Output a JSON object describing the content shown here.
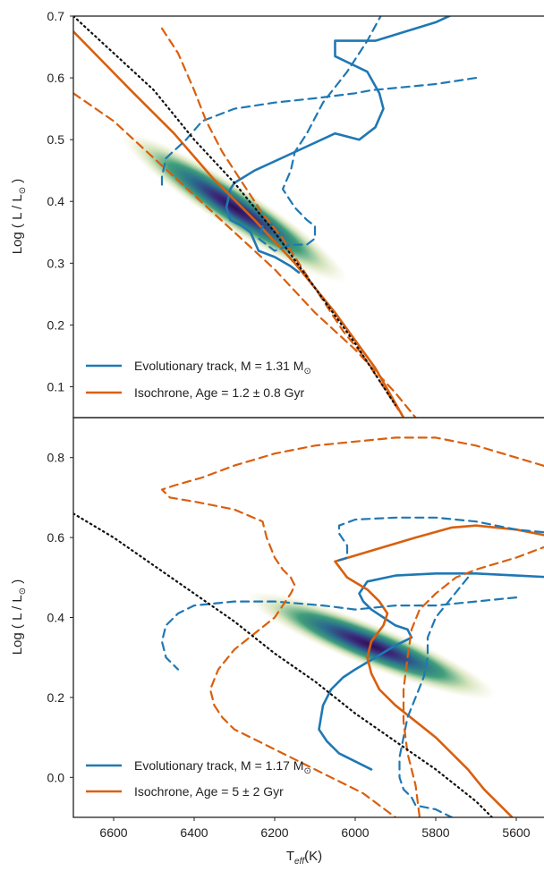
{
  "chart_data": [
    {
      "type": "line",
      "panel": "top",
      "xlim": [
        6700,
        5500
      ],
      "ylim": [
        0.05,
        0.7
      ],
      "x_ticks": [],
      "y_ticks": [
        0.1,
        0.2,
        0.3,
        0.4,
        0.5,
        0.6,
        0.7
      ],
      "y_tick_labels": [
        "0.1",
        "0.2",
        "0.3",
        "0.4",
        "0.5",
        "0.6",
        "0.7"
      ],
      "xlabel": "",
      "ylabel": "Log ( L / L",
      "ylabel_sub": "⊙",
      "ylabel_close": " )",
      "grid": false,
      "legend_position": "lower-left",
      "legend": [
        {
          "text": "Evolutionary track, M = 1.31 M",
          "sub": "⊙",
          "color": "#1f78b4"
        },
        {
          "text": "Isochrone, Age = 1.2 ± 0.8 Gyr",
          "sub": "",
          "color": "#d95f0e"
        }
      ],
      "density": {
        "center": [
          6300,
          0.39
        ],
        "colormap": "viridis-like (dark purple core, green-yellow halo)"
      },
      "series": [
        {
          "role": "track",
          "style": "solid",
          "color": "#1f78b4",
          "x": [
            5630,
            5700,
            5800,
            5950,
            6050,
            6050,
            5970,
            5940,
            5930,
            5950,
            5990,
            6050,
            6150,
            6250,
            6300,
            6310,
            6320,
            6310,
            6280,
            6260,
            6240,
            6200,
            6160,
            6140
          ],
          "y": [
            0.73,
            0.72,
            0.69,
            0.66,
            0.66,
            0.635,
            0.61,
            0.575,
            0.55,
            0.52,
            0.5,
            0.51,
            0.48,
            0.45,
            0.43,
            0.42,
            0.39,
            0.37,
            0.36,
            0.35,
            0.32,
            0.31,
            0.295,
            0.285
          ]
        },
        {
          "role": "isochrone",
          "style": "solid",
          "color": "#d95f0e",
          "x": [
            6700,
            6550,
            6450,
            6350,
            6250,
            6150,
            6050,
            5950,
            5880
          ],
          "y": [
            0.675,
            0.575,
            0.51,
            0.435,
            0.37,
            0.3,
            0.22,
            0.13,
            0.05
          ]
        },
        {
          "role": "track-error-upper",
          "style": "dashed",
          "color": "#1f78b4",
          "x": [
            5700,
            5800,
            5960,
            6000,
            6100,
            6200,
            6300,
            6380,
            6420,
            6470,
            6480,
            6480
          ],
          "y": [
            0.6,
            0.59,
            0.58,
            0.575,
            0.567,
            0.56,
            0.55,
            0.53,
            0.5,
            0.47,
            0.44,
            0.42
          ]
        },
        {
          "role": "track-error-lower",
          "style": "dashed",
          "color": "#1f78b4",
          "x": [
            5880,
            5920,
            5970,
            6020,
            6080,
            6120,
            6150,
            6160,
            6180,
            6150,
            6120,
            6100,
            6100,
            6120,
            6160,
            6200,
            6220,
            6240,
            6230
          ],
          "y": [
            0.73,
            0.72,
            0.66,
            0.61,
            0.56,
            0.51,
            0.48,
            0.45,
            0.42,
            0.39,
            0.37,
            0.36,
            0.34,
            0.33,
            0.33,
            0.32,
            0.33,
            0.34,
            0.36
          ]
        },
        {
          "role": "isochrone-error",
          "style": "dashed",
          "color": "#d95f0e",
          "x": [
            6700,
            6600,
            6500,
            6400,
            6300,
            6200,
            6100,
            6000,
            5900,
            5850
          ],
          "y": [
            0.575,
            0.53,
            0.47,
            0.41,
            0.35,
            0.29,
            0.22,
            0.16,
            0.09,
            0.05
          ]
        },
        {
          "role": "isochrone-error",
          "style": "dashed",
          "color": "#d95f0e",
          "x": [
            6480,
            6440,
            6400,
            6370,
            6330,
            6280,
            6230,
            6180,
            6130,
            6080,
            6030,
            5980,
            5930,
            5880
          ],
          "y": [
            0.68,
            0.64,
            0.58,
            0.53,
            0.48,
            0.43,
            0.38,
            0.34,
            0.29,
            0.24,
            0.19,
            0.15,
            0.1,
            0.05
          ]
        },
        {
          "role": "zams",
          "style": "dotted",
          "color": "#111111",
          "x": [
            6700,
            6600,
            6500,
            6400,
            6300,
            6200,
            6100,
            6000,
            5900
          ],
          "y": [
            0.7,
            0.64,
            0.58,
            0.5,
            0.43,
            0.35,
            0.26,
            0.17,
            0.07
          ]
        }
      ]
    },
    {
      "type": "line",
      "panel": "bottom",
      "xlim": [
        6700,
        5500
      ],
      "ylim": [
        -0.1,
        0.9
      ],
      "x_ticks": [
        6600,
        6400,
        6200,
        6000,
        5800,
        5600
      ],
      "x_tick_labels": [
        "6600",
        "6400",
        "6200",
        "6000",
        "5800",
        "5600"
      ],
      "y_ticks": [
        0.0,
        0.2,
        0.4,
        0.6,
        0.8
      ],
      "y_tick_labels": [
        "0.0",
        "0.2",
        "0.4",
        "0.6",
        "0.8"
      ],
      "xlabel": "T",
      "xlabel_sub": "eff",
      "xlabel_unit": "(K)",
      "ylabel": "Log ( L / L",
      "ylabel_sub": "⊙",
      "ylabel_close": " )",
      "grid": false,
      "legend_position": "lower-left",
      "legend": [
        {
          "text": "Evolutionary track, M = 1.17 M",
          "sub": "⊙",
          "color": "#1f78b4"
        },
        {
          "text": "Isochrone, Age = 5 ± 2 Gyr",
          "sub": "",
          "color": "#d95f0e"
        }
      ],
      "density": {
        "center": [
          5960,
          0.33
        ],
        "colormap": "viridis-like (dark purple core, green-yellow halo)"
      },
      "series": [
        {
          "role": "track",
          "style": "solid",
          "color": "#1f78b4",
          "x": [
            5500,
            5600,
            5700,
            5800,
            5900,
            5970,
            5990,
            5980,
            5960,
            5930,
            5900,
            5870,
            5860,
            5900,
            5950,
            6000,
            6030,
            6060,
            6080,
            6090,
            6070,
            6050,
            6040,
            6000,
            5960
          ],
          "y": [
            0.5,
            0.505,
            0.51,
            0.51,
            0.505,
            0.49,
            0.46,
            0.44,
            0.42,
            0.4,
            0.38,
            0.37,
            0.35,
            0.33,
            0.3,
            0.27,
            0.25,
            0.22,
            0.18,
            0.12,
            0.09,
            0.07,
            0.06,
            0.04,
            0.02
          ]
        },
        {
          "role": "isochrone",
          "style": "solid",
          "color": "#d95f0e",
          "x": [
            5500,
            5600,
            5700,
            5760,
            5850,
            5950,
            6050,
            6020,
            5970,
            5940,
            5920,
            5930,
            5960,
            5970,
            5960,
            5940,
            5900,
            5850,
            5800,
            5760,
            5720,
            5680,
            5640,
            5610
          ],
          "y": [
            0.6,
            0.62,
            0.63,
            0.625,
            0.6,
            0.57,
            0.54,
            0.5,
            0.47,
            0.44,
            0.41,
            0.38,
            0.34,
            0.3,
            0.26,
            0.22,
            0.18,
            0.14,
            0.1,
            0.06,
            0.02,
            -0.03,
            -0.07,
            -0.1
          ]
        },
        {
          "role": "track-error",
          "style": "dashed",
          "color": "#1f78b4",
          "x": [
            5500,
            5600,
            5700,
            5800,
            5900,
            6000,
            6040,
            6040,
            6020,
            6020,
            6050
          ],
          "y": [
            0.61,
            0.62,
            0.64,
            0.65,
            0.65,
            0.645,
            0.63,
            0.61,
            0.58,
            0.55,
            0.54
          ]
        },
        {
          "role": "track-error",
          "style": "dashed",
          "color": "#1f78b4",
          "x": [
            5600,
            5700,
            5800,
            5900,
            6000,
            6080,
            6200,
            6300,
            6400,
            6440,
            6470,
            6480,
            6470,
            6440
          ],
          "y": [
            0.45,
            0.44,
            0.43,
            0.43,
            0.42,
            0.43,
            0.44,
            0.44,
            0.43,
            0.41,
            0.38,
            0.34,
            0.3,
            0.27
          ]
        },
        {
          "role": "track-error",
          "style": "dashed",
          "color": "#1f78b4",
          "x": [
            5720,
            5760,
            5800,
            5820,
            5820,
            5830,
            5850,
            5870,
            5880,
            5890,
            5890,
            5880,
            5860,
            5850,
            5800,
            5760
          ],
          "y": [
            0.5,
            0.45,
            0.4,
            0.35,
            0.3,
            0.25,
            0.2,
            0.15,
            0.1,
            0.05,
            0.0,
            -0.03,
            -0.05,
            -0.07,
            -0.08,
            -0.1
          ]
        },
        {
          "role": "isochrone-error",
          "style": "dashed",
          "color": "#d95f0e",
          "x": [
            5500,
            5600,
            5700,
            5800,
            5900,
            6000,
            6100,
            6200,
            6300,
            6380,
            6450,
            6480,
            6460,
            6400,
            6300,
            6230,
            6220,
            6200,
            6180,
            6160,
            6150,
            6160,
            6180,
            6200,
            6250,
            6300,
            6340,
            6360,
            6350
          ],
          "y": [
            0.77,
            0.8,
            0.83,
            0.85,
            0.85,
            0.84,
            0.83,
            0.81,
            0.78,
            0.75,
            0.73,
            0.72,
            0.7,
            0.69,
            0.67,
            0.64,
            0.6,
            0.55,
            0.52,
            0.5,
            0.48,
            0.46,
            0.43,
            0.4,
            0.36,
            0.32,
            0.27,
            0.22,
            0.18
          ]
        },
        {
          "role": "isochrone-error",
          "style": "dashed",
          "color": "#d95f0e",
          "x": [
            5520,
            5600,
            5700,
            5750,
            5800,
            5840,
            5860,
            5870,
            5880,
            5880,
            5870,
            5850,
            5840
          ],
          "y": [
            0.58,
            0.55,
            0.52,
            0.5,
            0.46,
            0.42,
            0.37,
            0.3,
            0.22,
            0.14,
            0.06,
            -0.02,
            -0.1
          ]
        },
        {
          "role": "isochrone-error",
          "style": "dashed",
          "color": "#d95f0e",
          "x": [
            6350,
            6330,
            6300,
            6260,
            6220,
            6180,
            6140,
            6100,
            6060,
            6020,
            5980,
            5940,
            5900
          ],
          "y": [
            0.18,
            0.15,
            0.12,
            0.1,
            0.08,
            0.06,
            0.04,
            0.02,
            0.0,
            -0.02,
            -0.04,
            -0.07,
            -0.1
          ]
        },
        {
          "role": "zams",
          "style": "dotted",
          "color": "#111111",
          "x": [
            6700,
            6600,
            6500,
            6400,
            6300,
            6200,
            6100,
            6000,
            5900,
            5800,
            5700,
            5660
          ],
          "y": [
            0.66,
            0.6,
            0.53,
            0.46,
            0.39,
            0.31,
            0.24,
            0.16,
            0.09,
            0.02,
            -0.06,
            -0.1
          ]
        }
      ]
    }
  ]
}
